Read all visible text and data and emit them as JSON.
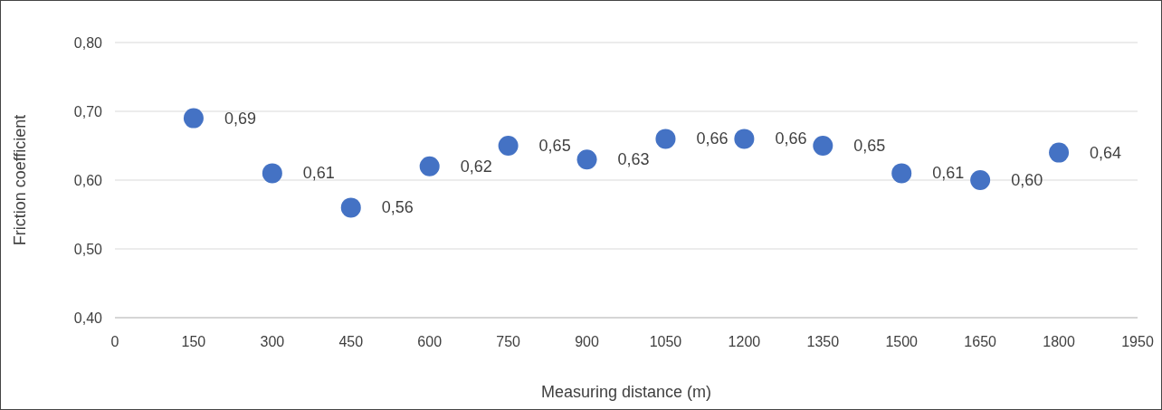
{
  "chart_data": {
    "type": "scatter",
    "xlabel": "Measuring distance (m)",
    "ylabel": "Friction coefficient",
    "x": [
      150,
      300,
      450,
      600,
      750,
      900,
      1050,
      1200,
      1350,
      1500,
      1650,
      1800
    ],
    "values": [
      0.69,
      0.61,
      0.56,
      0.62,
      0.65,
      0.63,
      0.66,
      0.66,
      0.65,
      0.61,
      0.6,
      0.64
    ],
    "value_labels": [
      "0,69",
      "0,61",
      "0,56",
      "0,62",
      "0,65",
      "0,63",
      "0,66",
      "0,66",
      "0,65",
      "0,61",
      "0,60",
      "0,64"
    ],
    "color": "#4472c4",
    "marker": "circle",
    "grid": "y",
    "xlim": [
      0,
      1950
    ],
    "xticks": [
      0,
      150,
      300,
      450,
      600,
      750,
      900,
      1050,
      1200,
      1350,
      1500,
      1650,
      1800,
      1950
    ],
    "ylim": [
      0.4,
      0.8
    ],
    "yticks": [
      {
        "value": 0.4,
        "label": "0,40"
      },
      {
        "value": 0.5,
        "label": "0,50"
      },
      {
        "value": 0.6,
        "label": "0,60"
      },
      {
        "value": 0.7,
        "label": "0,70"
      },
      {
        "value": 0.8,
        "label": "0,80"
      }
    ]
  }
}
